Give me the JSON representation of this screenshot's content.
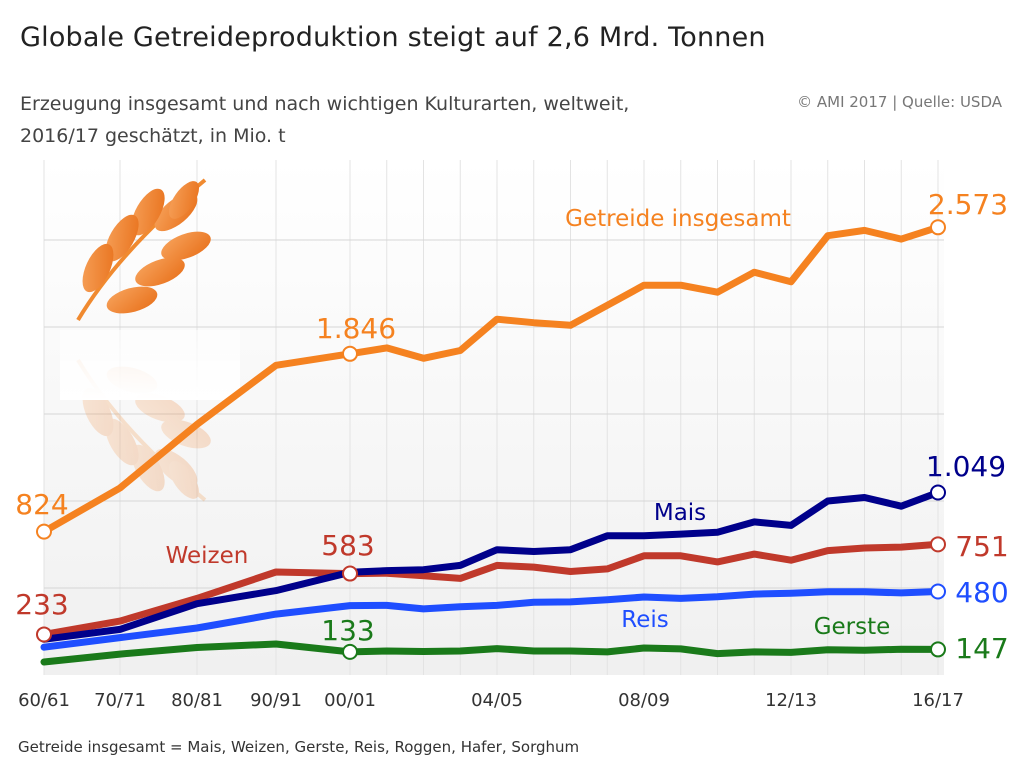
{
  "header": {
    "title": "Globale Getreideproduktion steigt auf 2,6 Mrd. Tonnen",
    "subtitle_line1": "Erzeugung insgesamt und nach wichtigen Kulturarten, weltweit,",
    "subtitle_line2": "2016/17 geschätzt, in Mio. t",
    "source": "© AMI 2017 | Quelle: USDA"
  },
  "footnote": "Getreide insgesamt = Mais, Weizen, Gerste, Reis, Roggen, Hafer, Sorghum",
  "chart_data": {
    "type": "line",
    "title": "Globale Getreideproduktion steigt auf 2,6 Mrd. Tonnen",
    "xlabel": "",
    "ylabel": "",
    "ylim": [
      0,
      2800
    ],
    "grid": true,
    "x": [
      "60/61",
      "70/71",
      "80/81",
      "90/91",
      "00/01",
      "01/02",
      "02/03",
      "03/04",
      "04/05",
      "05/06",
      "06/07",
      "07/08",
      "08/09",
      "09/10",
      "10/11",
      "11/12",
      "12/13",
      "13/14",
      "14/15",
      "15/16",
      "16/17"
    ],
    "x_tick_labels": [
      "60/61",
      "70/71",
      "80/81",
      "90/91",
      "00/01",
      "04/05",
      "08/09",
      "12/13",
      "16/17"
    ],
    "series": [
      {
        "name": "Getreide insgesamt",
        "color": "#f58220",
        "values": [
          824,
          1075,
          1440,
          1780,
          1846,
          1880,
          1820,
          1865,
          2045,
          2025,
          2010,
          2125,
          2240,
          2240,
          2200,
          2315,
          2260,
          2525,
          2555,
          2505,
          2573
        ],
        "labeled_points": [
          {
            "index": 0,
            "label": "824"
          },
          {
            "index": 4,
            "label": "1.846"
          },
          {
            "index": 20,
            "label": "2.573"
          }
        ]
      },
      {
        "name": "Mais",
        "color": "#00008b",
        "values": [
          205,
          262,
          410,
          485,
          590,
          600,
          605,
          630,
          720,
          710,
          720,
          800,
          800,
          810,
          820,
          880,
          860,
          1000,
          1020,
          970,
          1049
        ],
        "labeled_points": [
          {
            "index": 20,
            "label": "1.049"
          }
        ]
      },
      {
        "name": "Weizen",
        "color": "#c0392b",
        "values": [
          233,
          310,
          440,
          592,
          583,
          585,
          570,
          555,
          630,
          620,
          595,
          610,
          685,
          685,
          650,
          695,
          660,
          715,
          730,
          735,
          751
        ],
        "labeled_points": [
          {
            "index": 0,
            "label": "233"
          },
          {
            "index": 4,
            "label": "583"
          },
          {
            "index": 20,
            "label": "751"
          }
        ]
      },
      {
        "name": "Reis",
        "color": "#1f4eff",
        "values": [
          160,
          215,
          270,
          350,
          399,
          400,
          380,
          392,
          400,
          418,
          420,
          432,
          448,
          440,
          450,
          465,
          470,
          478,
          478,
          472,
          480
        ],
        "labeled_points": [
          {
            "index": 20,
            "label": "480"
          }
        ]
      },
      {
        "name": "Gerste",
        "color": "#1a7a1a",
        "values": [
          75,
          120,
          158,
          178,
          133,
          138,
          135,
          138,
          152,
          138,
          138,
          133,
          155,
          150,
          123,
          133,
          130,
          145,
          142,
          148,
          147
        ],
        "labeled_points": [
          {
            "index": 4,
            "label": "133"
          },
          {
            "index": 20,
            "label": "147"
          }
        ]
      }
    ],
    "legend": "series labels placed directly on the lines"
  }
}
